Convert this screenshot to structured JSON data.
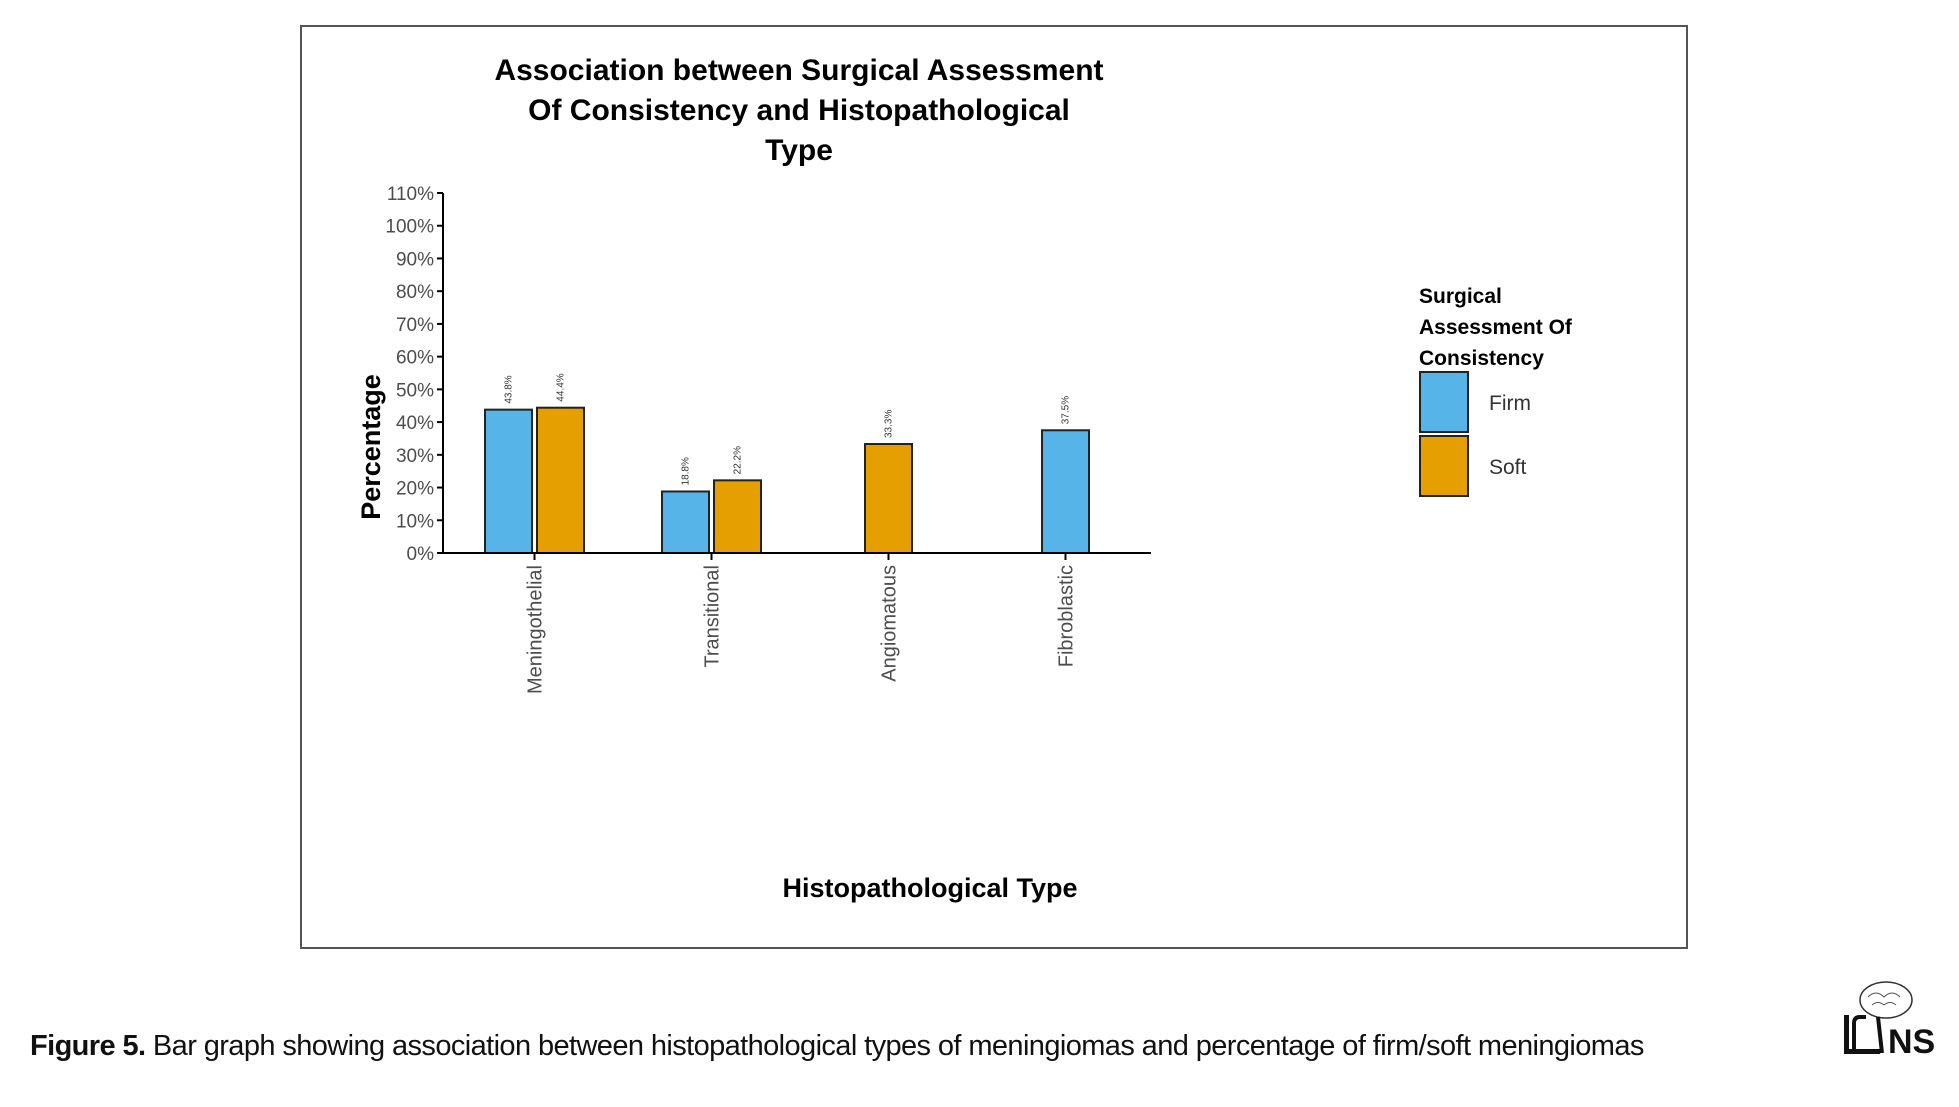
{
  "colors": {
    "firm": "#56b4e9",
    "soft": "#e69f00",
    "outline": "#222222",
    "axis": "#000000"
  },
  "chart_data": {
    "type": "bar",
    "title_lines": [
      "Association between Surgical Assessment",
      "Of Consistency and Histopathological",
      "Type"
    ],
    "xlabel": "Histopathological Type",
    "ylabel": "Percentage",
    "ylim": [
      0,
      110
    ],
    "yticks": [
      "0%",
      "10%",
      "20%",
      "30%",
      "40%",
      "50%",
      "60%",
      "70%",
      "80%",
      "90%",
      "100%",
      "110%"
    ],
    "categories": [
      "Meningothelial",
      "Transitional",
      "Angiomatous",
      "Fibroblastic"
    ],
    "series": [
      {
        "name": "Firm",
        "values": [
          43.8,
          18.8,
          null,
          37.5
        ],
        "labels": [
          "43.8%",
          "18.8%",
          "",
          "37.5%"
        ]
      },
      {
        "name": "Soft",
        "values": [
          44.4,
          22.2,
          33.3,
          null
        ],
        "labels": [
          "44.4%",
          "22.2%",
          "33.3%",
          ""
        ]
      }
    ],
    "legend": {
      "title_lines": [
        "Surgical",
        "Assessment Of",
        "Consistency"
      ],
      "items": [
        "Firm",
        "Soft"
      ],
      "placement": "right"
    },
    "grid": false
  },
  "caption": {
    "label": "Figure 5.",
    "text": " Bar graph showing association between histopathological types of meningiomas and percentage of firm/soft meningiomas"
  },
  "logo": {
    "text": "NS",
    "icon": "brain-logo-icon"
  }
}
